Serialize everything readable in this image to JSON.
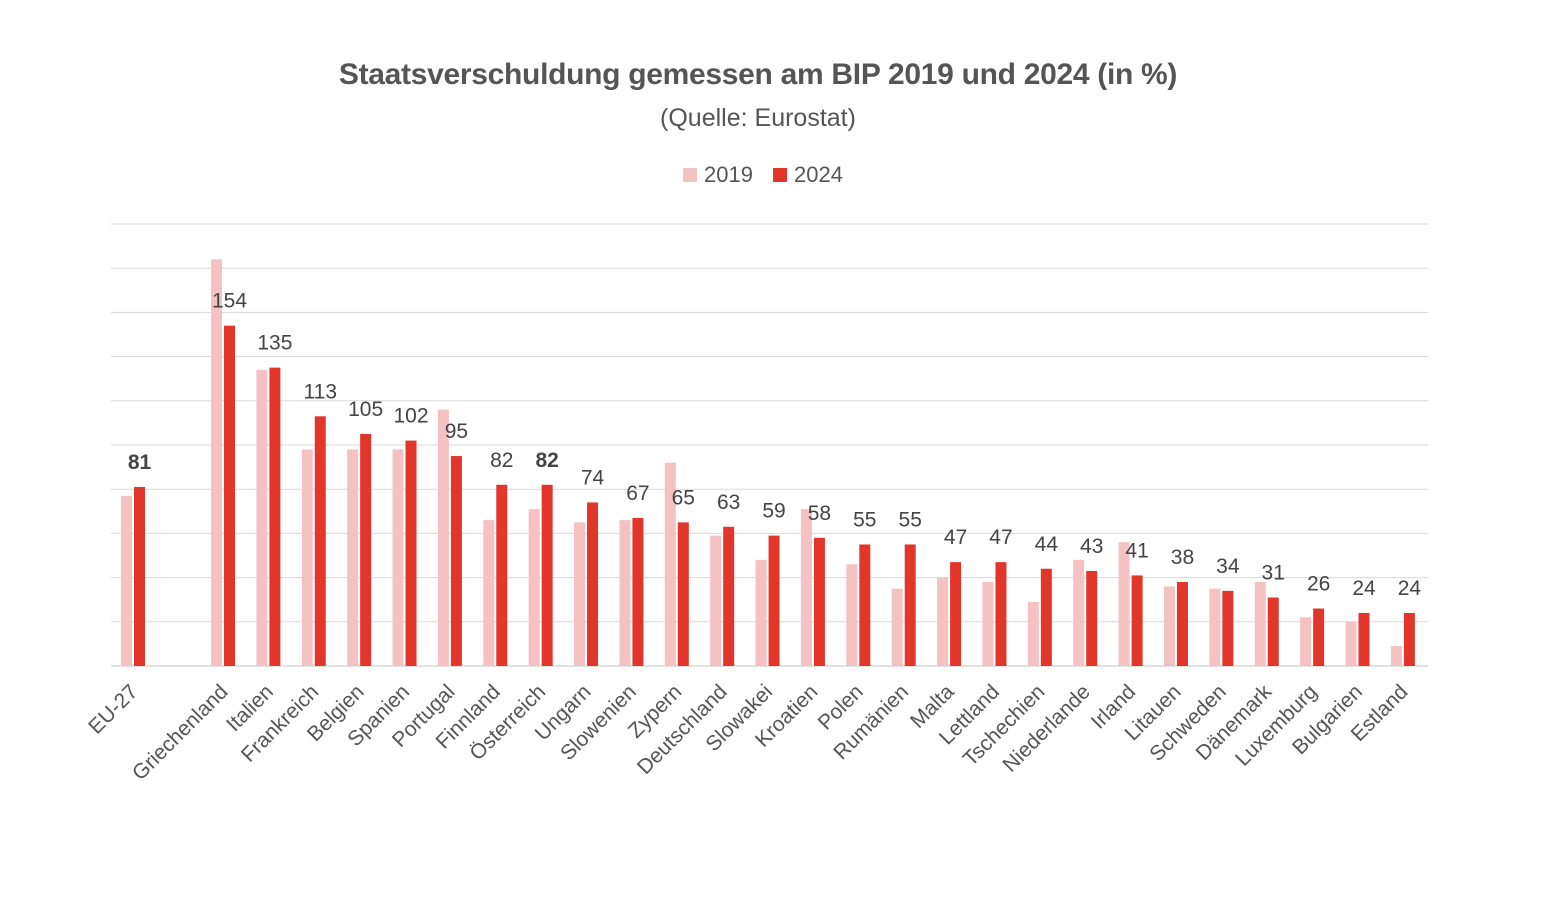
{
  "chart_data": {
    "type": "bar",
    "title": "Staatsverschuldung gemessen am BIP 2019 und 2024 (in %)",
    "subtitle": "(Quelle: Eurostat)",
    "categories": [
      "EU-27",
      "Griechenland",
      "Italien",
      "Frankreich",
      "Belgien",
      "Spanien",
      "Portugal",
      "Finnland",
      "Österreich",
      "Ungarn",
      "Slowenien",
      "Zypern",
      "Deutschland",
      "Slowakei",
      "Kroatien",
      "Polen",
      "Rumänien",
      "Malta",
      "Lettland",
      "Tschechien",
      "Niederlande",
      "Irland",
      "Litauen",
      "Schweden",
      "Dänemark",
      "Luxemburg",
      "Bulgarien",
      "Estland"
    ],
    "series": [
      {
        "name": "2019",
        "color": "#f4c2c2",
        "values": [
          77,
          184,
          134,
          98,
          98,
          98,
          116,
          66,
          71,
          65,
          66,
          92,
          59,
          48,
          71,
          46,
          35,
          40,
          38,
          29,
          48,
          56,
          36,
          35,
          38,
          22,
          20,
          9
        ]
      },
      {
        "name": "2024",
        "color": "#e3362b",
        "values": [
          81,
          154,
          135,
          113,
          105,
          102,
          95,
          82,
          82,
          74,
          67,
          65,
          63,
          59,
          58,
          55,
          55,
          47,
          47,
          44,
          43,
          41,
          38,
          34,
          31,
          26,
          24,
          24
        ]
      }
    ],
    "data_labels": [
      "81",
      "154",
      "135",
      "113",
      "105",
      "102",
      "95",
      "82",
      "82",
      "74",
      "67",
      "65",
      "63",
      "59",
      "58",
      "55",
      "55",
      "47",
      "47",
      "44",
      "43",
      "41",
      "38",
      "34",
      "31",
      "26",
      "24",
      "24"
    ],
    "bold_labels": [
      "EU-27",
      "Österreich"
    ],
    "ylim": [
      0,
      200
    ],
    "gridlines": [
      0,
      20,
      40,
      60,
      80,
      100,
      120,
      140,
      160,
      180,
      200
    ],
    "grid": true,
    "legend_position": "top"
  }
}
